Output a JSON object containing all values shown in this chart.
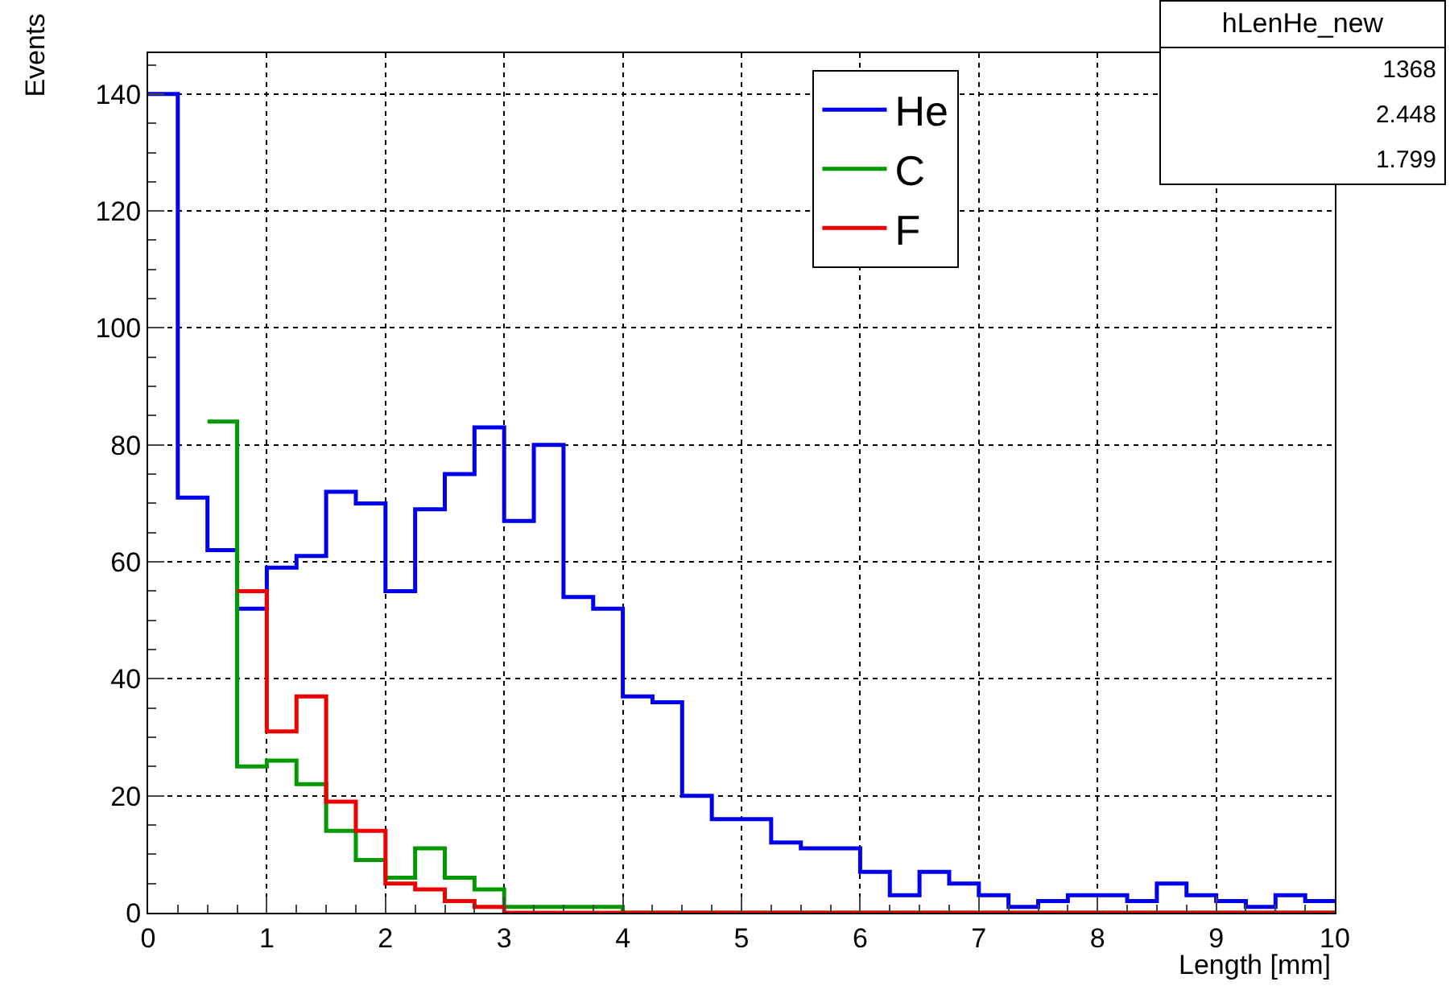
{
  "chart_data": {
    "type": "histogram",
    "xlabel": "Length [mm]",
    "ylabel": "Events",
    "bins": [
      0,
      0.25,
      0.5,
      0.75,
      1,
      1.25,
      1.5,
      1.75,
      2,
      2.25,
      2.5,
      2.75,
      3,
      3.25,
      3.5,
      3.75,
      4,
      4.25,
      4.5,
      4.75,
      5,
      5.25,
      5.5,
      5.75,
      6,
      6.25,
      6.5,
      6.75,
      7,
      7.25,
      7.5,
      7.75,
      8,
      8.25,
      8.5,
      8.75,
      9,
      9.25,
      9.5,
      9.75,
      10
    ],
    "series": [
      {
        "name": "He",
        "color": "#0000ee",
        "values": [
          140,
          71,
          62,
          52,
          59,
          61,
          72,
          70,
          55,
          69,
          75,
          83,
          67,
          80,
          54,
          52,
          37,
          36,
          20,
          16,
          16,
          12,
          11,
          11,
          7,
          3,
          7,
          5,
          3,
          1,
          2,
          3,
          3,
          2,
          5,
          3,
          2,
          1,
          3,
          2
        ]
      },
      {
        "name": "C",
        "color": "#009900",
        "bins": [
          0.5,
          0.75,
          1,
          1.25,
          1.5,
          1.75,
          2,
          2.25,
          2.5,
          2.75,
          3,
          3.25,
          3.5,
          3.75,
          4,
          4.25,
          4.5,
          4.75,
          5,
          5.25,
          5.5,
          5.75,
          6,
          6.25,
          6.5,
          6.75,
          7,
          7.25,
          7.5,
          7.75,
          8,
          8.25,
          8.5,
          8.75,
          9,
          9.25,
          9.5,
          9.75,
          10
        ],
        "values": [
          84,
          25,
          26,
          22,
          14,
          9,
          6,
          11,
          6,
          4,
          1,
          1,
          1,
          1,
          0,
          0,
          0,
          0,
          0,
          0,
          0,
          0,
          0,
          0,
          0,
          0,
          0,
          0,
          0,
          0,
          0,
          0,
          0,
          0,
          0,
          0,
          0,
          0
        ]
      },
      {
        "name": "F",
        "color": "#ee0000",
        "bins": [
          0.75,
          1,
          1.25,
          1.5,
          1.75,
          2,
          2.25,
          2.5,
          2.75,
          3,
          3.25,
          3.5,
          3.75,
          4,
          4.25,
          4.5,
          4.75,
          5,
          5.25,
          5.5,
          5.75,
          6,
          6.25,
          6.5,
          6.75,
          7,
          7.25,
          7.5,
          7.75,
          8,
          8.25,
          8.5,
          8.75,
          9,
          9.25,
          9.5,
          9.75,
          10
        ],
        "values": [
          55,
          31,
          37,
          19,
          14,
          5,
          4,
          2,
          1,
          0,
          0,
          0,
          0,
          0,
          0,
          0,
          0,
          0,
          0,
          0,
          0,
          0,
          0,
          0,
          0,
          0,
          0,
          0,
          0,
          0,
          0,
          0,
          0,
          0,
          0,
          0,
          0
        ]
      }
    ],
    "xlim": [
      0,
      10
    ],
    "xticks": [
      0,
      1,
      2,
      3,
      4,
      5,
      6,
      7,
      8,
      9,
      10
    ],
    "ylim": [
      0,
      147
    ],
    "yticks": [
      0,
      20,
      40,
      60,
      80,
      100,
      120,
      140
    ],
    "grid": true,
    "legend": "top right",
    "annotations": [
      "hLenHe_new",
      "1368",
      "2.448",
      "1.799"
    ]
  }
}
